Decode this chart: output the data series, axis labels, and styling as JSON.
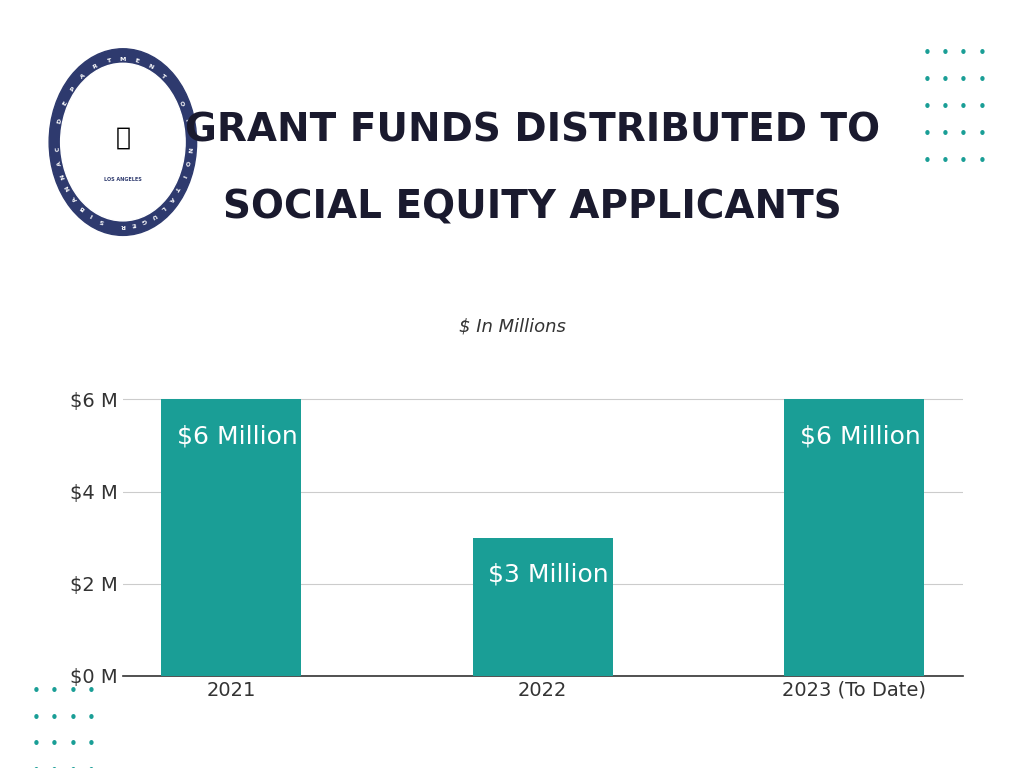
{
  "categories": [
    "2021",
    "2022",
    "2023 (To Date)"
  ],
  "values": [
    6,
    3,
    6
  ],
  "bar_labels": [
    "$6 Million",
    "$3 Million",
    "$6 Million"
  ],
  "bar_color": "#1a9e96",
  "background_color": "#ffffff",
  "title_line1": "GRANT FUNDS DISTRIBUTED TO",
  "title_line2": "SOCIAL EQUITY APPLICANTS",
  "subtitle": "$ In Millions",
  "title_fontsize": 28,
  "subtitle_fontsize": 13,
  "bar_label_fontsize": 18,
  "tick_label_fontsize": 14,
  "ytick_labels": [
    "$0 M",
    "$2 M",
    "$4 M",
    "$6 M"
  ],
  "ytick_values": [
    0,
    2,
    4,
    6
  ],
  "ylim": [
    0,
    7
  ],
  "dot_color_teal": "#1a9e96",
  "dot_color_navy": "#2e3a6e",
  "title_color": "#1a1a2e",
  "grid_color": "#cccccc"
}
